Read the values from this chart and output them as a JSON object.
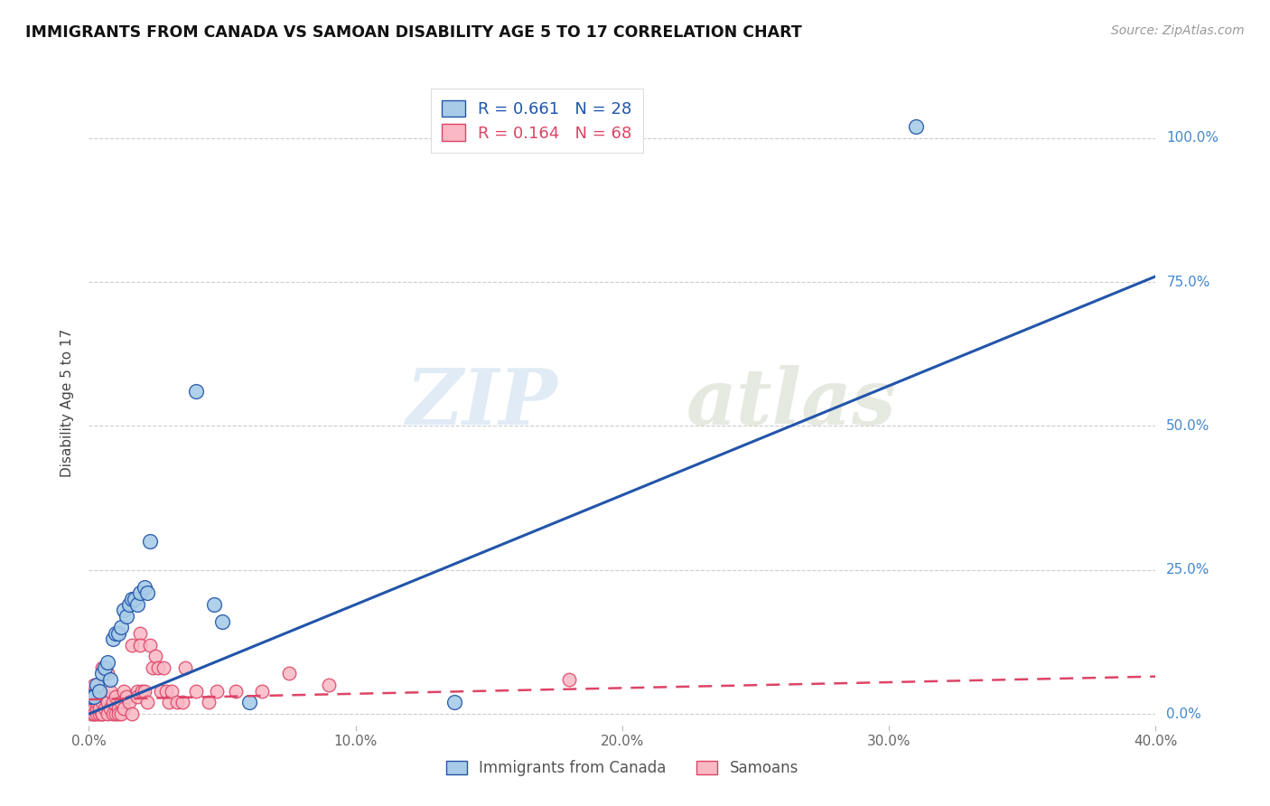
{
  "title": "IMMIGRANTS FROM CANADA VS SAMOAN DISABILITY AGE 5 TO 17 CORRELATION CHART",
  "source": "Source: ZipAtlas.com",
  "ylabel": "Disability Age 5 to 17",
  "xlim": [
    0.0,
    0.4
  ],
  "ylim": [
    -0.02,
    1.1
  ],
  "xticks": [
    0.0,
    0.1,
    0.2,
    0.3,
    0.4
  ],
  "xtick_labels": [
    "0.0%",
    "10.0%",
    "20.0%",
    "30.0%",
    "40.0%"
  ],
  "ytick_labels_right": [
    "0.0%",
    "25.0%",
    "50.0%",
    "75.0%",
    "100.0%"
  ],
  "ytick_values_right": [
    0.0,
    0.25,
    0.5,
    0.75,
    1.0
  ],
  "legend1_label": "R = 0.661   N = 28",
  "legend2_label": "R = 0.164   N = 68",
  "legend_label1": "Immigrants from Canada",
  "legend_label2": "Samoans",
  "watermark_zip": "ZIP",
  "watermark_atlas": "atlas",
  "blue_color": "#A8CCE8",
  "pink_color": "#F8B8C4",
  "blue_line_color": "#2255AA",
  "pink_line_color": "#DD4466",
  "blue_scatter": [
    [
      0.001,
      0.03
    ],
    [
      0.002,
      0.03
    ],
    [
      0.003,
      0.05
    ],
    [
      0.004,
      0.04
    ],
    [
      0.005,
      0.07
    ],
    [
      0.006,
      0.08
    ],
    [
      0.007,
      0.09
    ],
    [
      0.008,
      0.06
    ],
    [
      0.009,
      0.13
    ],
    [
      0.01,
      0.14
    ],
    [
      0.011,
      0.14
    ],
    [
      0.012,
      0.15
    ],
    [
      0.013,
      0.18
    ],
    [
      0.014,
      0.17
    ],
    [
      0.015,
      0.19
    ],
    [
      0.016,
      0.2
    ],
    [
      0.017,
      0.2
    ],
    [
      0.018,
      0.19
    ],
    [
      0.019,
      0.21
    ],
    [
      0.021,
      0.22
    ],
    [
      0.022,
      0.21
    ],
    [
      0.023,
      0.3
    ],
    [
      0.04,
      0.56
    ],
    [
      0.047,
      0.19
    ],
    [
      0.05,
      0.16
    ],
    [
      0.06,
      0.02
    ],
    [
      0.137,
      0.02
    ],
    [
      0.31,
      1.02
    ]
  ],
  "pink_scatter": [
    [
      0.001,
      0.01
    ],
    [
      0.001,
      0.02
    ],
    [
      0.001,
      0.0
    ],
    [
      0.001,
      0.04
    ],
    [
      0.002,
      0.0
    ],
    [
      0.002,
      0.01
    ],
    [
      0.002,
      0.03
    ],
    [
      0.002,
      0.0
    ],
    [
      0.002,
      0.05
    ],
    [
      0.003,
      0.0
    ],
    [
      0.003,
      0.01
    ],
    [
      0.003,
      0.04
    ],
    [
      0.003,
      0.02
    ],
    [
      0.004,
      0.0
    ],
    [
      0.004,
      0.02
    ],
    [
      0.004,
      0.01
    ],
    [
      0.005,
      0.0
    ],
    [
      0.005,
      0.02
    ],
    [
      0.005,
      0.08
    ],
    [
      0.005,
      0.0
    ],
    [
      0.006,
      0.01
    ],
    [
      0.006,
      0.03
    ],
    [
      0.007,
      0.0
    ],
    [
      0.007,
      0.02
    ],
    [
      0.007,
      0.07
    ],
    [
      0.008,
      0.01
    ],
    [
      0.008,
      0.04
    ],
    [
      0.009,
      0.0
    ],
    [
      0.009,
      0.02
    ],
    [
      0.01,
      0.03
    ],
    [
      0.01,
      0.0
    ],
    [
      0.011,
      0.01
    ],
    [
      0.011,
      0.0
    ],
    [
      0.012,
      0.02
    ],
    [
      0.012,
      0.0
    ],
    [
      0.013,
      0.04
    ],
    [
      0.013,
      0.01
    ],
    [
      0.014,
      0.03
    ],
    [
      0.015,
      0.02
    ],
    [
      0.016,
      0.0
    ],
    [
      0.016,
      0.12
    ],
    [
      0.018,
      0.04
    ],
    [
      0.018,
      0.03
    ],
    [
      0.019,
      0.14
    ],
    [
      0.019,
      0.12
    ],
    [
      0.02,
      0.04
    ],
    [
      0.021,
      0.04
    ],
    [
      0.022,
      0.02
    ],
    [
      0.023,
      0.12
    ],
    [
      0.024,
      0.08
    ],
    [
      0.025,
      0.1
    ],
    [
      0.026,
      0.08
    ],
    [
      0.027,
      0.04
    ],
    [
      0.028,
      0.08
    ],
    [
      0.029,
      0.04
    ],
    [
      0.03,
      0.02
    ],
    [
      0.031,
      0.04
    ],
    [
      0.033,
      0.02
    ],
    [
      0.035,
      0.02
    ],
    [
      0.036,
      0.08
    ],
    [
      0.04,
      0.04
    ],
    [
      0.045,
      0.02
    ],
    [
      0.048,
      0.04
    ],
    [
      0.055,
      0.04
    ],
    [
      0.065,
      0.04
    ],
    [
      0.075,
      0.07
    ],
    [
      0.09,
      0.05
    ],
    [
      0.18,
      0.06
    ]
  ],
  "blue_line": [
    [
      0.0,
      0.0
    ],
    [
      0.4,
      0.76
    ]
  ],
  "pink_line": [
    [
      0.0,
      0.025
    ],
    [
      0.4,
      0.065
    ]
  ]
}
